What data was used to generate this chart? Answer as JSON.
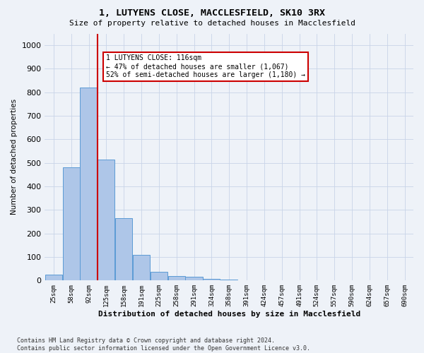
{
  "title": "1, LUTYENS CLOSE, MACCLESFIELD, SK10 3RX",
  "subtitle": "Size of property relative to detached houses in Macclesfield",
  "xlabel": "Distribution of detached houses by size in Macclesfield",
  "ylabel": "Number of detached properties",
  "bar_values": [
    25,
    480,
    820,
    515,
    265,
    110,
    37,
    20,
    15,
    8,
    3,
    0,
    0,
    0,
    0,
    0,
    0,
    0,
    0,
    0,
    0
  ],
  "categories": [
    "25sqm",
    "58sqm",
    "92sqm",
    "125sqm",
    "158sqm",
    "191sqm",
    "225sqm",
    "258sqm",
    "291sqm",
    "324sqm",
    "358sqm",
    "391sqm",
    "424sqm",
    "457sqm",
    "491sqm",
    "524sqm",
    "557sqm",
    "590sqm",
    "624sqm",
    "657sqm",
    "690sqm"
  ],
  "bar_color": "#aec6e8",
  "bar_edge_color": "#5b9bd5",
  "vline_position": 2.5,
  "vline_color": "#cc0000",
  "ylim": [
    0,
    1050
  ],
  "annotation_text": "1 LUTYENS CLOSE: 116sqm\n← 47% of detached houses are smaller (1,067)\n52% of semi-detached houses are larger (1,180) →",
  "annotation_box_color": "#ffffff",
  "annotation_border_color": "#cc0000",
  "footnote": "Contains HM Land Registry data © Crown copyright and database right 2024.\nContains public sector information licensed under the Open Government Licence v3.0.",
  "grid_color": "#c8d4e8",
  "bg_color": "#eef2f8"
}
